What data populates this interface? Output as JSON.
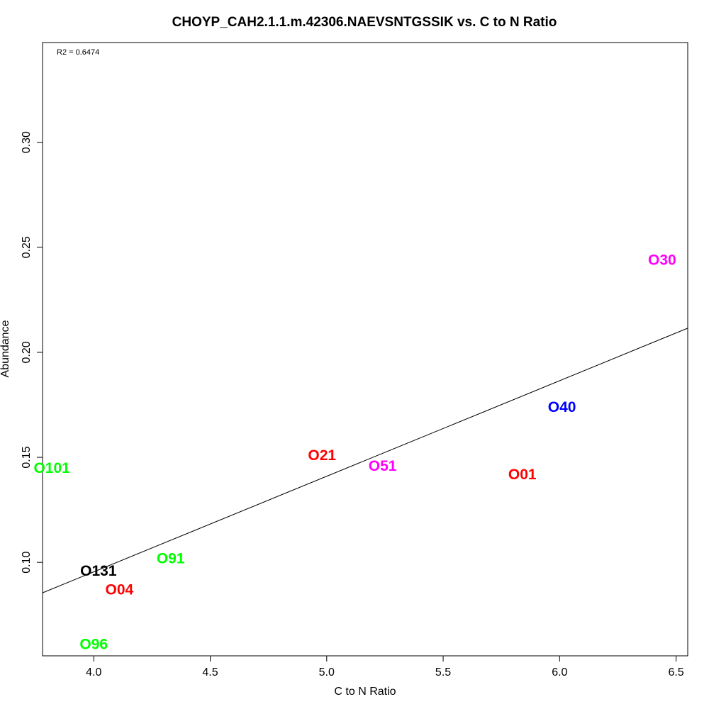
{
  "chart_data": {
    "type": "scatter",
    "title": "CHOYP_CAH2.1.1.m.42306.NAEVSNTGSSIK vs. C to N Ratio",
    "xlabel": "C to N Ratio",
    "ylabel": "Abundance",
    "annotation": "R2 = 0.6474",
    "xlim": [
      3.78,
      6.55
    ],
    "ylim": [
      0.0555,
      0.3475
    ],
    "x_ticks": [
      4.0,
      4.5,
      5.0,
      5.5,
      6.0,
      6.5
    ],
    "x_tick_labels": [
      "4.0",
      "4.5",
      "5.0",
      "5.5",
      "6.0",
      "6.5"
    ],
    "y_ticks": [
      0.1,
      0.15,
      0.2,
      0.25,
      0.3
    ],
    "y_tick_labels": [
      "0.10",
      "0.15",
      "0.20",
      "0.25",
      "0.30"
    ],
    "regression_line": {
      "x": [
        3.78,
        6.55
      ],
      "y": [
        0.0855,
        0.2115
      ],
      "color": "#000000"
    },
    "points": [
      {
        "label": "O101",
        "x": 3.82,
        "y": 0.145,
        "color": "#00ff00"
      },
      {
        "label": "O131",
        "x": 4.02,
        "y": 0.096,
        "color": "#000000"
      },
      {
        "label": "O04",
        "x": 4.11,
        "y": 0.087,
        "color": "#ff0000"
      },
      {
        "label": "O96",
        "x": 4.0,
        "y": 0.061,
        "color": "#00ff00"
      },
      {
        "label": "O91",
        "x": 4.33,
        "y": 0.102,
        "color": "#00ff00"
      },
      {
        "label": "O21",
        "x": 4.98,
        "y": 0.151,
        "color": "#ff0000"
      },
      {
        "label": "O51",
        "x": 5.24,
        "y": 0.146,
        "color": "#ff00ff"
      },
      {
        "label": "O01",
        "x": 5.84,
        "y": 0.142,
        "color": "#ff0000"
      },
      {
        "label": "O40",
        "x": 6.01,
        "y": 0.174,
        "color": "#0000ff"
      },
      {
        "label": "O30",
        "x": 6.44,
        "y": 0.244,
        "color": "#ff00ff"
      }
    ]
  }
}
